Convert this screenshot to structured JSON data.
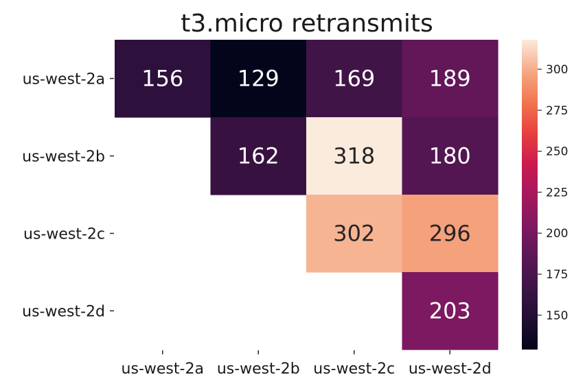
{
  "chart_data": {
    "type": "heatmap",
    "title": "t3.micro retransmits",
    "x_categories": [
      "us-west-2a",
      "us-west-2b",
      "us-west-2c",
      "us-west-2d"
    ],
    "y_categories": [
      "us-west-2a",
      "us-west-2b",
      "us-west-2c",
      "us-west-2d"
    ],
    "matrix": [
      [
        156,
        129,
        169,
        189
      ],
      [
        null,
        162,
        318,
        180
      ],
      [
        null,
        null,
        302,
        296
      ],
      [
        null,
        null,
        null,
        203
      ]
    ],
    "colorbar": {
      "range": [
        129,
        318
      ],
      "ticks": [
        150,
        175,
        200,
        225,
        250,
        275,
        300
      ],
      "colormap": "rocket",
      "placement": "right"
    },
    "annotation_colors": {
      "dark": "#262626",
      "light": "#ffffff"
    }
  }
}
